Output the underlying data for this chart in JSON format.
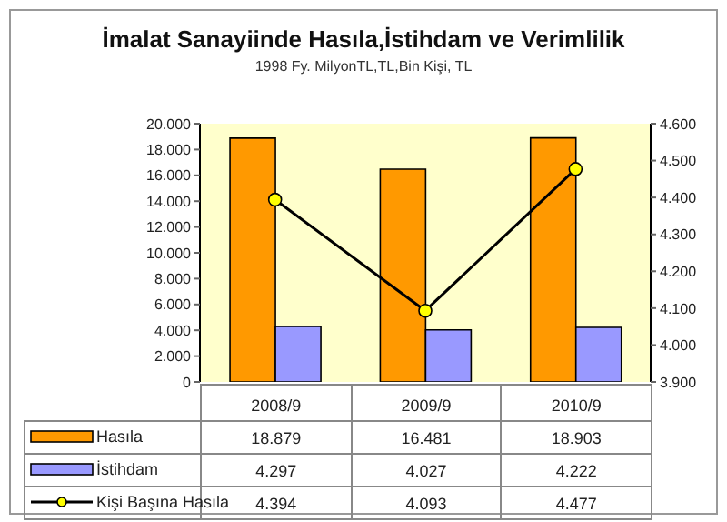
{
  "chart_data": {
    "type": "bar",
    "title": "İmalat Sanayiinde Hasıla,İstihdam ve Verimlilik",
    "subtitle": "1998 Fy.  MilyonTL,TL,Bin Kişi, TL",
    "categories": [
      "2008/9",
      "2009/9",
      "2010/9"
    ],
    "series": [
      {
        "name": "Hasıla",
        "color": "#ff9900",
        "values": [
          18879,
          16481,
          18903
        ],
        "value_labels": [
          "18.879",
          "16.481",
          "18.903"
        ]
      },
      {
        "name": "İstihdam",
        "color": "#9999ff",
        "values": [
          4297,
          4027,
          4222
        ],
        "value_labels": [
          "4.297",
          "4.027",
          "4.222"
        ]
      },
      {
        "name": "Kişi Başına Hasıla",
        "type": "line",
        "axis": "y2",
        "color": "#000000",
        "values": [
          4394,
          4093,
          4477
        ],
        "value_labels": [
          "4.394",
          "4.093",
          "4.477"
        ]
      }
    ],
    "ylim": [
      0,
      20000
    ],
    "yticks": [
      0,
      {
        "value": 2000,
        "label": "2.000"
      },
      {
        "value": 4000,
        "label": "4.000"
      },
      {
        "value": 6000,
        "label": "6.000"
      },
      {
        "value": 8000,
        "label": "8.000"
      },
      {
        "value": 10000,
        "label": "10.000"
      },
      {
        "value": 12000,
        "label": "12.000"
      },
      {
        "value": 14000,
        "label": "14.000"
      },
      {
        "value": 16000,
        "label": "16.000"
      },
      {
        "value": 18000,
        "label": "18.000"
      },
      {
        "value": 20000,
        "label": "20.000"
      }
    ],
    "y2lim": [
      3900,
      4600
    ],
    "y2ticks": [
      {
        "value": 3900,
        "label": "3.900"
      },
      {
        "value": 4000,
        "label": "4.000"
      },
      {
        "value": 4100,
        "label": "4.100"
      },
      {
        "value": 4200,
        "label": "4.200"
      },
      {
        "value": 4300,
        "label": "4.300"
      },
      {
        "value": 4400,
        "label": "4.400"
      },
      {
        "value": 4500,
        "label": "4.500"
      },
      {
        "value": 4600,
        "label": "4.600"
      }
    ],
    "marker": "circle",
    "grid": false,
    "legend": "bottom"
  }
}
